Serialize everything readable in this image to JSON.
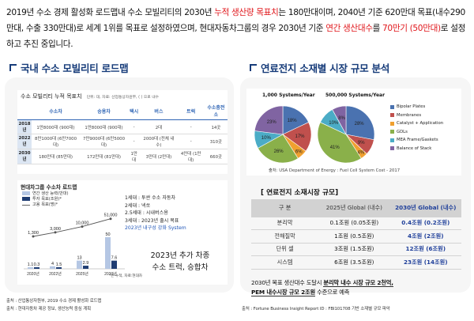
{
  "intro": {
    "p1": "2019년 수소 경제 활성화 로드맵내 수소 모빌리티의 2030년 ",
    "p1_red": "누적 생산량 목표치",
    "p2": "는 180만대이며, 2040년 기준 620만대 목표(내수290만대, 수출 330만대)로 세계 1위를 목표로 설정하였으며, 현대자동차그룹의 경우 2030년 기준 ",
    "p2_red": "연간 생산대수",
    "p3": "를 ",
    "p3_red": "70만기 (50만대)",
    "p4": "로 설정하고 추진 중입니다."
  },
  "left": {
    "title": "국내 수소 모빌리티 로드맵",
    "table_caption": "수소 모빌리티 누적 목표치",
    "table_caption_note": "단위: 대, 자료: 산업통상자원부, (  ) 으로 내수",
    "headers": [
      "",
      "수소차",
      "승용차",
      "택시",
      "버스",
      "트럭",
      "수소충전소"
    ],
    "rows": [
      [
        "2018년",
        "1만8000대 (900대)",
        "1만8000대 (900대)",
        "-",
        "2대",
        "-",
        "14곳"
      ],
      [
        "2022년",
        "8만1000대 (6만7000대)",
        "7만9000대 (6만5000대)",
        "-",
        "2000대 (전체 내수)",
        "-",
        "310곳"
      ],
      [
        "2030년",
        "180만대 (85만대)",
        "172만대 (81만대)",
        "1만대",
        "3만대 (2만대)",
        "4만대 (1만대)",
        "660곳"
      ]
    ],
    "group_title": "현대차그룹 수소차 로드맵",
    "legend": [
      "연간 생산 능력(만대)",
      "투자 목표(조원)*",
      "고용 목표(명)*"
    ],
    "years": [
      "2020년",
      "2022년",
      "2025년",
      "2030년"
    ],
    "capacity_labels": [
      "1.1",
      "4",
      "13",
      "50"
    ],
    "invest_labels": [
      "0.3",
      "1.5",
      "2.9",
      "7.6"
    ],
    "jobs_labels": [
      "1,300",
      "3,000",
      "10,000",
      "51,000"
    ],
    "footnote": "*은 누적, 자료:현대차",
    "steps": [
      "1세대 : 투싼 수소 자동차",
      "2세대 : 넥쏘",
      "2.5세대 : 시내버스용",
      "3세대 : 2023년 출시 목표"
    ],
    "steps_blue": "2023년 내구성 강화 System",
    "callout_1": "2023년 추가 차종",
    "callout_2": "수소 트럭, 승합차",
    "source_1": "출처 : 산업통상자원부, 2019 수소 경제 활성화 로드맵",
    "source_2": "출처 : 현대자동차 제공 정보, 생산능력 중심 계획"
  },
  "right": {
    "title": "연료전지 소재별 시장 규모 분석",
    "pie_titles": [
      "1,000 Systems/Year",
      "500,000 Systems/Year"
    ],
    "pie_legend": [
      "Bipolar Plates",
      "Membranes",
      "Catalyst + Application",
      "GDLs",
      "MEA Frame/Gaskets",
      "Balance of Stack"
    ],
    "pie_colors": [
      "#4a72b0",
      "#c0504d",
      "#f0a030",
      "#8ab04a",
      "#4bacc6",
      "#8064a2"
    ],
    "pie_source": "출처: USA Department of Energy : Fuel Cell System Cost - 2017",
    "table_title": "[ 연료전지 소재시장 규모]",
    "table_headers": [
      "구 분",
      "2025년 Global (내수)",
      "2030년 Global (내수)"
    ],
    "table_rows": [
      [
        "분리막",
        "0.1조원 (0.05조원)",
        "0.4조원 (0.2조원)"
      ],
      [
        "전해질막",
        "1조원 (0.5조원)",
        "4조원 (2조원)"
      ],
      [
        "단위 셀",
        "3조원 (1.5조원)",
        "12조원 (6조원)"
      ],
      [
        "시스템",
        "6조원 (3.5조원)",
        "23조원 (14조원)"
      ]
    ],
    "summary_1": "2030년 목표 생산대수 도달시 ",
    "summary_1_bold": "분리막 내수 시장 규모 2천억,",
    "summary_2_bold": "PEM 내수시장 규모 2조원",
    "summary_2": " 수준으로 예측",
    "source": "출처 : Fortune Business Insight Report ID : FBI101708 기반 소재별 규모 파악"
  },
  "chart_data": [
    {
      "type": "pie",
      "title": "1,000 Systems/Year",
      "categories": [
        "Bipolar Plates",
        "Membranes",
        "Catalyst + Application",
        "GDLs",
        "MEA Frame/Gaskets",
        "Balance of Stack"
      ],
      "values": [
        18,
        17,
        6,
        26,
        10,
        23
      ],
      "labels": [
        "18%",
        "17%",
        "6%",
        "26%",
        "10%",
        "23%"
      ]
    },
    {
      "type": "pie",
      "title": "500,000 Systems/Year",
      "categories": [
        "Bipolar Plates",
        "Membranes",
        "Catalyst + Application",
        "GDLs",
        "MEA Frame/Gaskets",
        "Balance of Stack"
      ],
      "values": [
        28,
        9,
        4,
        41,
        10,
        8
      ],
      "labels": [
        "28%",
        "9%",
        "4%",
        "41%",
        "10%",
        "8%"
      ]
    },
    {
      "type": "bar",
      "title": "현대차그룹 수소차 로드맵",
      "categories": [
        "2020년",
        "2022년",
        "2025년",
        "2030년"
      ],
      "series": [
        {
          "name": "연간 생산 능력(만대)",
          "values": [
            1.1,
            4,
            13,
            50
          ]
        },
        {
          "name": "투자 목표(조원)*",
          "values": [
            0.3,
            1.5,
            2.9,
            7.6
          ]
        }
      ],
      "line_series": {
        "name": "고용 목표(명)*",
        "values": [
          1300,
          3000,
          10000,
          51000
        ]
      }
    }
  ]
}
